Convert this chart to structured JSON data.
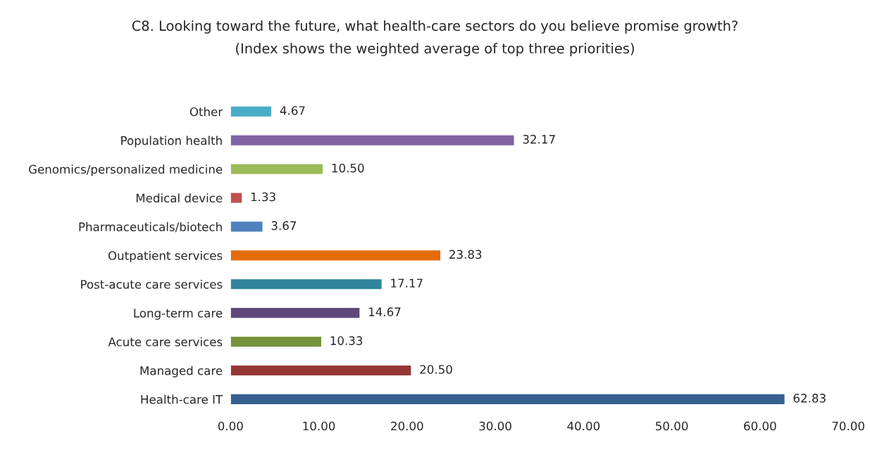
{
  "chart_data": {
    "type": "bar",
    "orientation": "horizontal",
    "title": "C8. Looking toward the future, what health-care sectors do you believe promise growth?",
    "subtitle": "(Index shows the weighted average of top three priorities)",
    "categories": [
      "Other",
      "Population health",
      "Genomics/personalized medicine",
      "Medical device",
      "Pharmaceuticals/biotech",
      "Outpatient services",
      "Post-acute care services",
      "Long-term care",
      "Acute care services",
      "Managed care",
      "Health-care IT"
    ],
    "values": [
      4.67,
      32.17,
      10.5,
      1.33,
      3.67,
      23.83,
      17.17,
      14.67,
      10.33,
      20.5,
      62.83
    ],
    "value_labels": [
      "4.67",
      "32.17",
      "10.50",
      "1.33",
      "3.67",
      "23.83",
      "17.17",
      "14.67",
      "10.33",
      "20.50",
      "62.83"
    ],
    "colors": [
      "#4bacc6",
      "#8064a2",
      "#9bbb59",
      "#c0504d",
      "#4f81bd",
      "#e36c09",
      "#31849b",
      "#5f497a",
      "#77933c",
      "#953735",
      "#376092"
    ],
    "xlim": [
      0,
      70
    ],
    "xticks": [
      {
        "value": 0,
        "label": "0.00"
      },
      {
        "value": 10,
        "label": "10.00"
      },
      {
        "value": 20,
        "label": "20.00"
      },
      {
        "value": 30,
        "label": "30.00"
      },
      {
        "value": 40,
        "label": "40.00"
      },
      {
        "value": 50,
        "label": "50.00"
      },
      {
        "value": 60,
        "label": "60.00"
      },
      {
        "value": 70,
        "label": "70.00"
      }
    ],
    "grid": false,
    "legend": false
  }
}
